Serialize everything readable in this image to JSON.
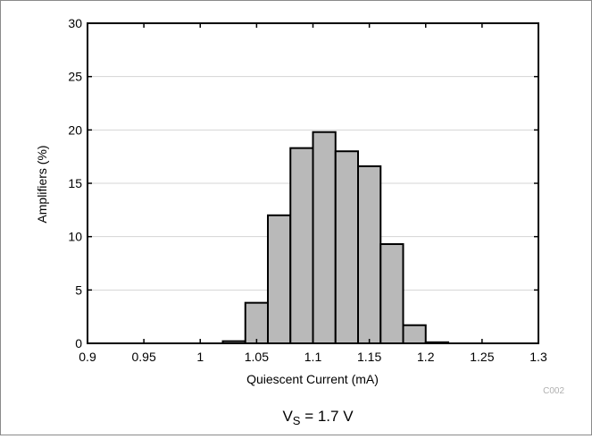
{
  "chart_data": {
    "type": "bar",
    "x_bins": [
      1.02,
      1.04,
      1.06,
      1.08,
      1.1,
      1.12,
      1.14,
      1.16,
      1.18,
      1.2
    ],
    "bin_width": 0.02,
    "values": [
      0.2,
      3.8,
      12.0,
      18.3,
      19.8,
      18.0,
      16.6,
      9.3,
      1.7,
      0.1
    ],
    "xlabel": "Quiescent Current (mA)",
    "ylabel": "Amplifiers (%)",
    "xlim": [
      0.9,
      1.3
    ],
    "ylim": [
      0,
      30
    ],
    "x_ticks": [
      "0.9",
      "0.95",
      "1",
      "1.05",
      "1.1",
      "1.15",
      "1.2",
      "1.25",
      "1.3"
    ],
    "y_ticks": [
      "0",
      "5",
      "10",
      "15",
      "20",
      "25",
      "30"
    ],
    "grid": "horizontal",
    "caption_main": "V",
    "caption_sub": "S",
    "caption_rest": " = 1.7 V",
    "figure_code": "C002",
    "bar_fill": "#b9b9b9",
    "bar_stroke": "#000000"
  }
}
